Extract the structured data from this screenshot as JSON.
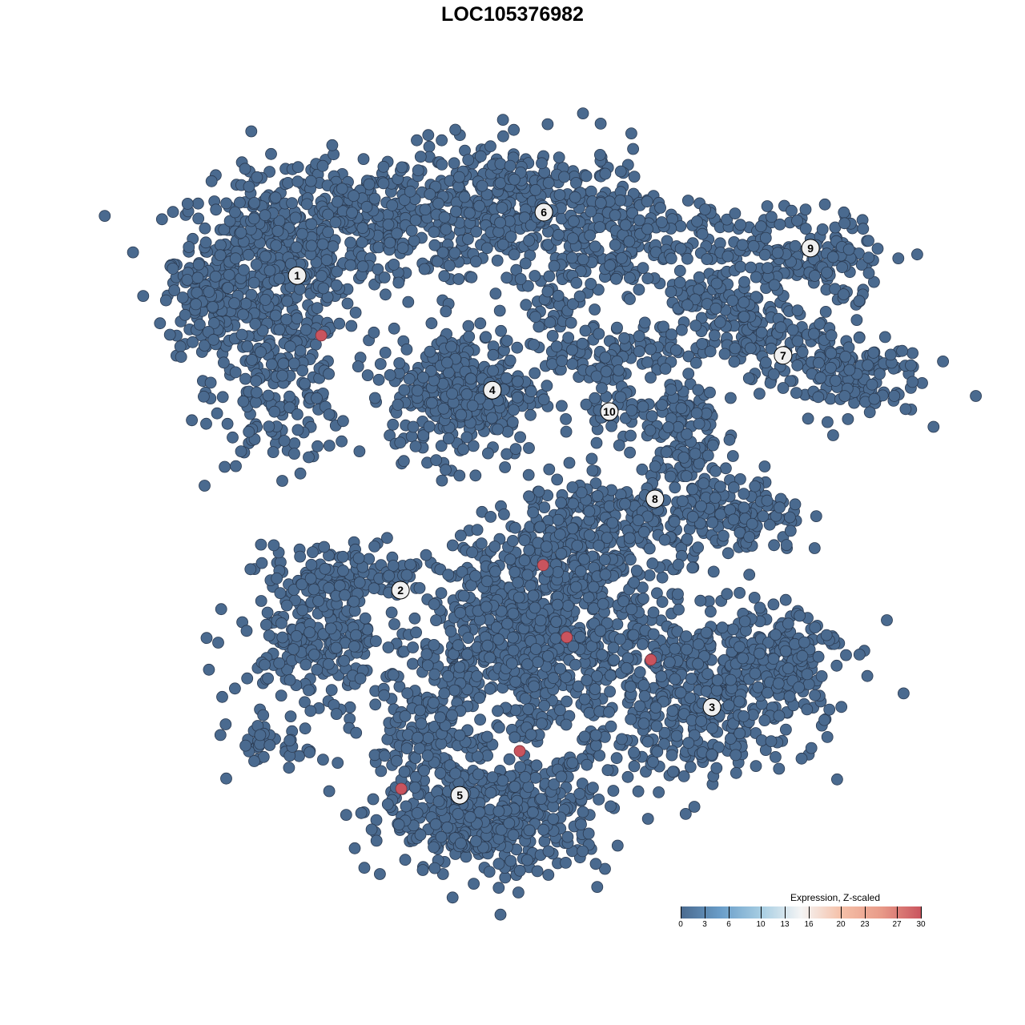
{
  "title": "LOC105376982",
  "chart_data": {
    "type": "scatter",
    "title": "LOC105376982",
    "xlabel": "",
    "ylabel": "",
    "xlim": [
      -10,
      10
    ],
    "ylim": [
      -10,
      10
    ],
    "grid": false,
    "axes_visible": false,
    "point_color_low": "#4a6a8f",
    "point_stroke": "#2b3b52",
    "highlight_color": "#c9545e",
    "cluster_labels": [
      {
        "label": "1",
        "x": -6.29,
        "y": 6.47
      },
      {
        "label": "2",
        "x": -3.5,
        "y": -2.21
      },
      {
        "label": "3",
        "x": 4.91,
        "y": -5.44
      },
      {
        "label": "4",
        "x": -1.02,
        "y": 3.31
      },
      {
        "label": "5",
        "x": -1.9,
        "y": -7.87
      },
      {
        "label": "6",
        "x": 0.37,
        "y": 8.22
      },
      {
        "label": "7",
        "x": 6.83,
        "y": 4.27
      },
      {
        "label": "8",
        "x": 3.37,
        "y": 0.31
      },
      {
        "label": "9",
        "x": 7.57,
        "y": 7.23
      },
      {
        "label": "10",
        "x": 2.14,
        "y": 2.72
      }
    ],
    "cluster_regions": [
      {
        "cluster": "1",
        "center": [
          -6.96,
          6.85
        ],
        "sd": [
          1.3,
          1.1
        ],
        "n": 400
      },
      {
        "cluster": "1",
        "center": [
          -6.75,
          3.47
        ],
        "sd": [
          0.9,
          1.1
        ],
        "n": 200
      },
      {
        "cluster": "1",
        "center": [
          -8.7,
          5.7
        ],
        "sd": [
          0.6,
          0.9
        ],
        "n": 100
      },
      {
        "cluster": "1",
        "center": [
          -4.15,
          8.1
        ],
        "sd": [
          1.7,
          0.9
        ],
        "n": 300
      },
      {
        "cluster": "6",
        "center": [
          -0.04,
          8.33
        ],
        "sd": [
          1.7,
          0.9
        ],
        "n": 350
      },
      {
        "cluster": "6",
        "center": [
          2.55,
          7.45
        ],
        "sd": [
          1.1,
          0.7
        ],
        "n": 150
      },
      {
        "cluster": "6",
        "center": [
          0.6,
          5.7
        ],
        "sd": [
          0.4,
          0.6
        ],
        "n": 40
      },
      {
        "cluster": "4",
        "center": [
          -1.77,
          3.25
        ],
        "sd": [
          1.0,
          0.9
        ],
        "n": 350
      },
      {
        "cluster": "10",
        "center": [
          1.69,
          4.35
        ],
        "sd": [
          1.1,
          0.45
        ],
        "n": 80
      },
      {
        "cluster": "10",
        "center": [
          2.23,
          3.03
        ],
        "sd": [
          0.45,
          0.65
        ],
        "n": 50
      },
      {
        "cluster": "7",
        "center": [
          5.8,
          5.0
        ],
        "sd": [
          1.1,
          0.55
        ],
        "n": 150
      },
      {
        "cluster": "7",
        "center": [
          8.4,
          3.7
        ],
        "sd": [
          1.1,
          0.55
        ],
        "n": 150
      },
      {
        "cluster": "7",
        "center": [
          4.7,
          6.1
        ],
        "sd": [
          0.45,
          0.45
        ],
        "n": 40
      },
      {
        "cluster": "9",
        "center": [
          7.1,
          7.2
        ],
        "sd": [
          1.3,
          0.55
        ],
        "n": 150
      },
      {
        "cluster": "9",
        "center": [
          8.4,
          6.6
        ],
        "sd": [
          0.35,
          0.9
        ],
        "n": 40
      },
      {
        "cluster": "8",
        "center": [
          4.06,
          2.14
        ],
        "sd": [
          0.55,
          1.1
        ],
        "n": 150
      },
      {
        "cluster": "8",
        "center": [
          5.6,
          -0.29
        ],
        "sd": [
          0.9,
          0.55
        ],
        "n": 150
      },
      {
        "cluster": "8",
        "center": [
          2.12,
          -0.07
        ],
        "sd": [
          1.1,
          0.45
        ],
        "n": 100
      },
      {
        "cluster": "2",
        "center": [
          -5.66,
          -3.38
        ],
        "sd": [
          1.1,
          0.9
        ],
        "n": 250
      },
      {
        "cluster": "2",
        "center": [
          -5.0,
          -1.83
        ],
        "sd": [
          1.1,
          0.45
        ],
        "n": 100
      },
      {
        "cluster": "2",
        "center": [
          -6.75,
          -6.47
        ],
        "sd": [
          0.65,
          0.35
        ],
        "n": 40
      },
      {
        "cluster": "5",
        "center": [
          -0.04,
          -3.6
        ],
        "sd": [
          1.5,
          1.5
        ],
        "n": 700
      },
      {
        "cluster": "5",
        "center": [
          1.25,
          -1.39
        ],
        "sd": [
          1.3,
          0.9
        ],
        "n": 250
      },
      {
        "cluster": "5",
        "center": [
          -0.91,
          -8.46
        ],
        "sd": [
          1.5,
          0.8
        ],
        "n": 450
      },
      {
        "cluster": "5",
        "center": [
          -2.85,
          -6.47
        ],
        "sd": [
          0.8,
          1.1
        ],
        "n": 150
      },
      {
        "cluster": "3",
        "center": [
          4.71,
          -5.15
        ],
        "sd": [
          1.5,
          1.1
        ],
        "n": 450
      },
      {
        "cluster": "3",
        "center": [
          6.66,
          -3.82
        ],
        "sd": [
          0.9,
          0.65
        ],
        "n": 150
      }
    ],
    "highlighted_points": [
      {
        "x": -5.64,
        "y": 4.82,
        "expression": 30
      },
      {
        "x": 0.35,
        "y": -1.52,
        "expression": 30
      },
      {
        "x": 0.99,
        "y": -3.51,
        "expression": 30
      },
      {
        "x": 3.26,
        "y": -4.13,
        "expression": 30
      },
      {
        "x": -0.28,
        "y": -6.65,
        "expression": 30
      },
      {
        "x": -3.48,
        "y": -7.69,
        "expression": 30
      }
    ],
    "legend": {
      "title": "Expression, Z-scaled",
      "placement": "bottom-right",
      "range": [
        0,
        30
      ],
      "ticks": [
        "0",
        "3",
        "6",
        "10",
        "13",
        "16",
        "20",
        "23",
        "27",
        "30"
      ],
      "colors": [
        "#4a6a8f",
        "#6a9ec9",
        "#a6cde2",
        "#f5f5f5",
        "#f5c0a8",
        "#e89a88",
        "#c9545e"
      ]
    }
  }
}
